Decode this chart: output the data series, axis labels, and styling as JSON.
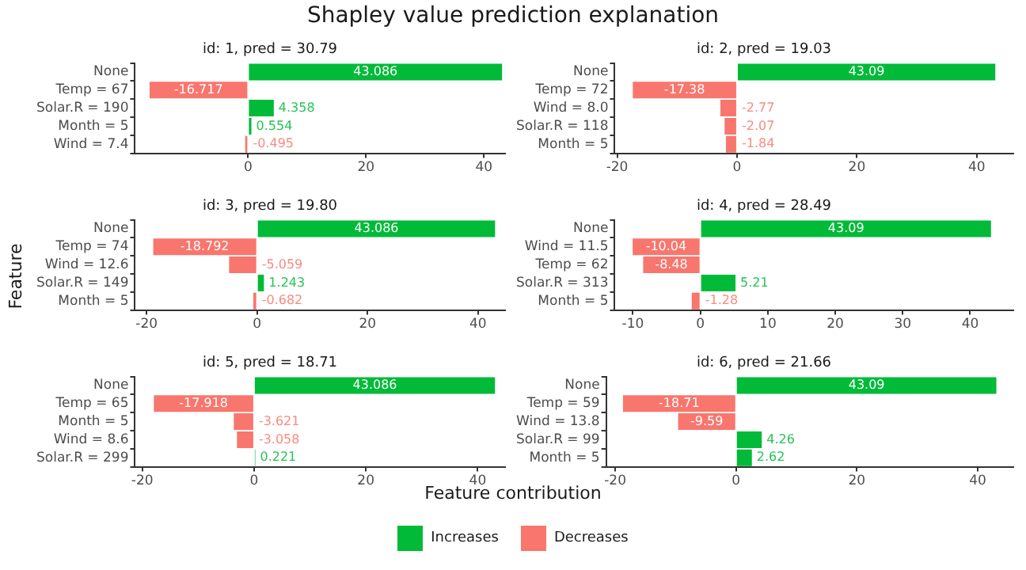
{
  "chart_data": [
    {
      "type": "other",
      "title": "Shapley value prediction explanation",
      "xlabel": "Feature contribution",
      "ylabel": "Feature"
    },
    {
      "type": "bar",
      "orientation": "horizontal",
      "title": "id: 1, pred = 30.79",
      "categories": [
        "None",
        "Temp = 67",
        "Solar.R = 190",
        "Month = 5",
        "Wind = 7.4"
      ],
      "series": [
        {
          "color": "#00ba38",
          "values": [
            43.086,
            null,
            4.358,
            0.554,
            null
          ]
        },
        {
          "color": "#f8766d",
          "values": [
            null,
            -16.717,
            null,
            null,
            -0.495
          ]
        }
      ],
      "xlim": [
        -19.2,
        43.6
      ],
      "xticks": [
        0,
        20,
        40
      ],
      "grid": false,
      "data_labels": true
    },
    {
      "type": "bar",
      "orientation": "horizontal",
      "title": "id: 2, pred = 19.03",
      "categories": [
        "None",
        "Temp = 72",
        "Wind = 8.0",
        "Solar.R = 118",
        "Month = 5"
      ],
      "series": [
        {
          "color": "#00ba38",
          "values": [
            43.09,
            null,
            null,
            null,
            null
          ]
        },
        {
          "color": "#f8766d",
          "values": [
            null,
            -17.38,
            -2.77,
            -2.07,
            -1.84
          ]
        }
      ],
      "xlim": [
        -20.4,
        46.1
      ],
      "xticks": [
        -20,
        0,
        20,
        40
      ],
      "grid": false,
      "data_labels": true
    },
    {
      "type": "bar",
      "orientation": "horizontal",
      "title": "id: 3, pred = 19.80",
      "categories": [
        "None",
        "Temp = 74",
        "Wind = 12.6",
        "Solar.R = 149",
        "Month = 5"
      ],
      "series": [
        {
          "color": "#00ba38",
          "values": [
            43.086,
            null,
            null,
            1.243,
            null
          ]
        },
        {
          "color": "#f8766d",
          "values": [
            null,
            -18.792,
            -5.059,
            null,
            -0.682
          ]
        }
      ],
      "xlim": [
        -22.1,
        44.9
      ],
      "xticks": [
        -20,
        0,
        20,
        40
      ],
      "grid": false,
      "data_labels": true
    },
    {
      "type": "bar",
      "orientation": "horizontal",
      "title": "id: 4, pred = 28.49",
      "categories": [
        "None",
        "Wind = 11.5",
        "Temp = 62",
        "Solar.R = 313",
        "Month = 5"
      ],
      "series": [
        {
          "color": "#00ba38",
          "values": [
            43.09,
            null,
            null,
            5.21,
            null
          ]
        },
        {
          "color": "#f8766d",
          "values": [
            null,
            -10.04,
            -8.48,
            null,
            -1.28
          ]
        }
      ],
      "xlim": [
        -12.7,
        46.4
      ],
      "xticks": [
        -10,
        0,
        10,
        20,
        30,
        40
      ],
      "grid": false,
      "data_labels": true
    },
    {
      "type": "bar",
      "orientation": "horizontal",
      "title": "id: 5, pred = 18.71",
      "categories": [
        "None",
        "Temp = 65",
        "Month = 5",
        "Wind = 8.6",
        "Solar.R = 299"
      ],
      "series": [
        {
          "color": "#00ba38",
          "values": [
            43.086,
            null,
            null,
            null,
            0.221
          ]
        },
        {
          "color": "#f8766d",
          "values": [
            null,
            -17.918,
            -3.621,
            -3.058,
            null
          ]
        }
      ],
      "xlim": [
        -21.3,
        44.9
      ],
      "xticks": [
        -20,
        0,
        20,
        40
      ],
      "grid": false,
      "data_labels": true
    },
    {
      "type": "bar",
      "orientation": "horizontal",
      "title": "id: 6, pred = 21.66",
      "categories": [
        "None",
        "Temp = 59",
        "Wind = 13.8",
        "Solar.R = 99",
        "Month = 5"
      ],
      "series": [
        {
          "name": "Increases",
          "color": "#00ba38",
          "values": [
            43.09,
            null,
            null,
            4.26,
            2.62
          ]
        },
        {
          "name": "Decreases",
          "color": "#f8766d",
          "values": [
            null,
            -18.71,
            -9.59,
            null,
            null
          ]
        }
      ],
      "xlim": [
        -21.5,
        45.9
      ],
      "xticks": [
        -20,
        0,
        20,
        40
      ],
      "grid": false,
      "data_labels": true,
      "legend": "bottom"
    }
  ]
}
